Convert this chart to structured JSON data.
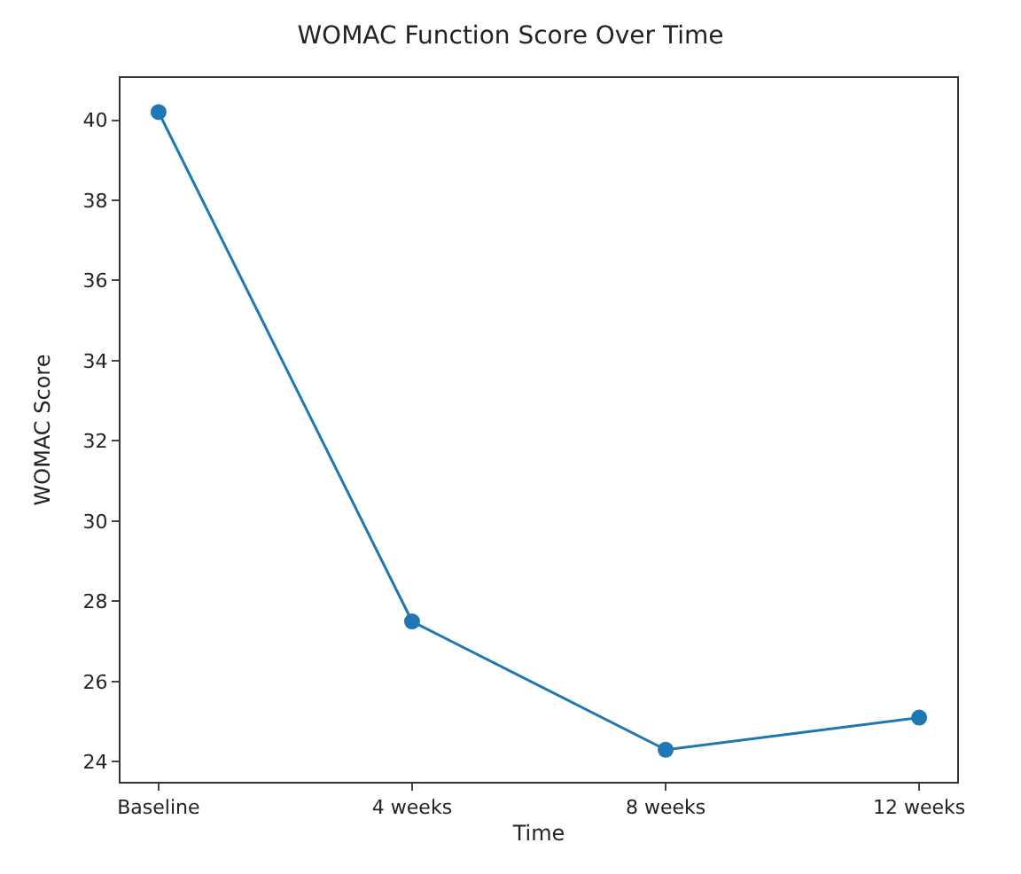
{
  "chart_data": {
    "type": "line",
    "title": "WOMAC Function Score Over Time",
    "xlabel": "Time",
    "ylabel": "WOMAC Score",
    "categories": [
      "Baseline",
      "4 weeks",
      "8 weeks",
      "12 weeks"
    ],
    "series": [
      {
        "color": "#1f77b4",
        "values": [
          40.2,
          27.5,
          24.3,
          25.1
        ]
      }
    ],
    "ylim": [
      23.5,
      41.05
    ],
    "yticks": [
      24,
      26,
      28,
      30,
      32,
      34,
      36,
      38,
      40
    ],
    "marker": "circle",
    "line_style": "solid"
  }
}
